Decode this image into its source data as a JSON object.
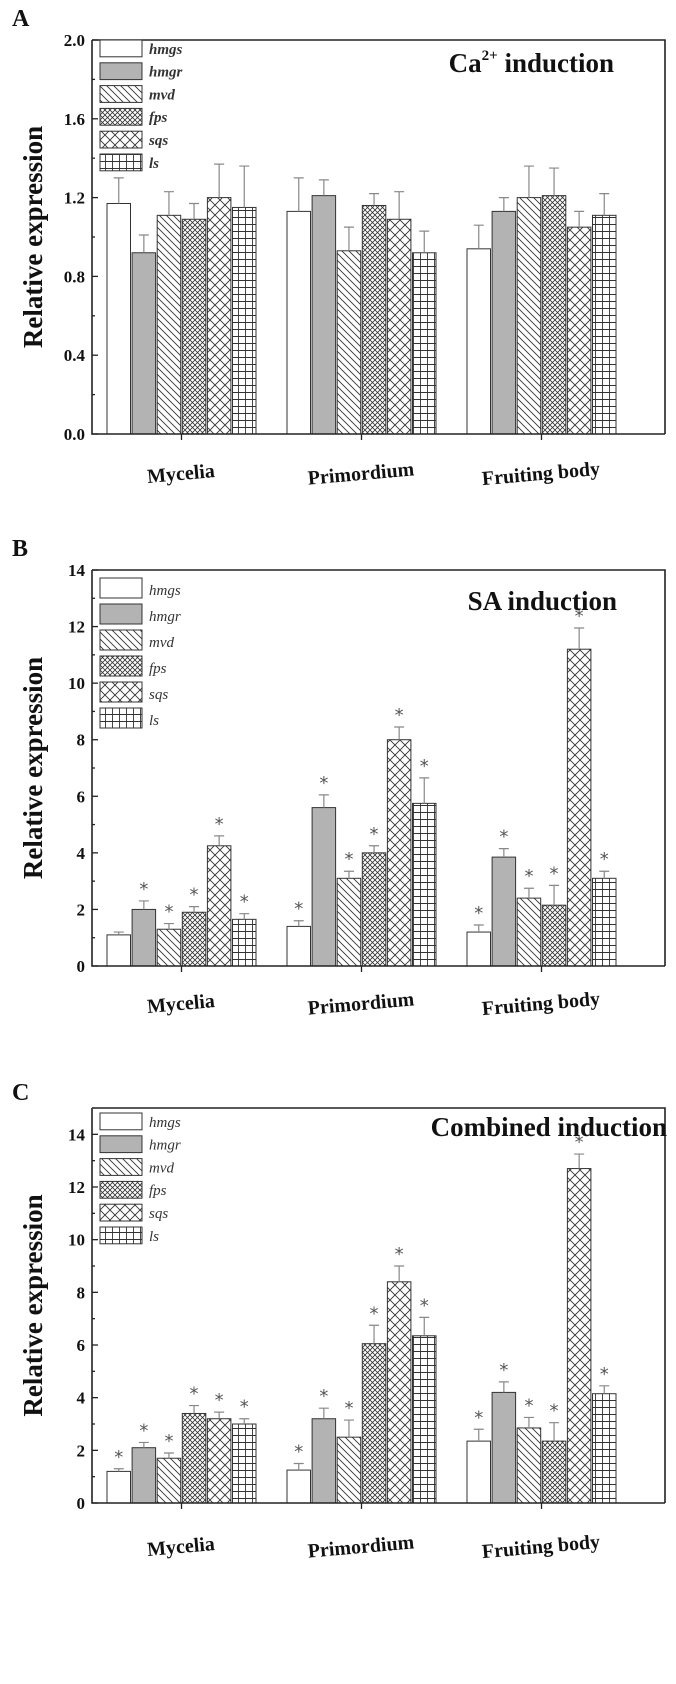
{
  "series_styles": [
    {
      "id": "hmgs",
      "fill": "#ffffff",
      "pattern": "none"
    },
    {
      "id": "hmgr",
      "fill": "#b3b3b3",
      "pattern": "solid"
    },
    {
      "id": "mvd",
      "fill": "#ffffff",
      "pattern": "diag-back"
    },
    {
      "id": "fps",
      "fill": "#ffffff",
      "pattern": "dense-cross"
    },
    {
      "id": "sqs",
      "fill": "#ffffff",
      "pattern": "diag-cross"
    },
    {
      "id": "ls",
      "fill": "#ffffff",
      "pattern": "grid"
    }
  ],
  "chart_data": [
    {
      "type": "bar",
      "panel": "A",
      "title": "Ca",
      "title_sup": "2+",
      "title_rest": " induction",
      "ylabel": "Relative expression",
      "ylim": [
        0,
        2.0
      ],
      "yticks": [
        0.0,
        0.4,
        0.8,
        1.2,
        1.6,
        2.0
      ],
      "ytick_labels": [
        "0.0",
        "0.4",
        "0.8",
        "1.2",
        "1.6",
        "2.0"
      ],
      "categories": [
        "Mycelia",
        "Primordium",
        "Fruiting body"
      ],
      "legend_bold": true,
      "series": [
        {
          "name": "hmgs",
          "values": [
            1.17,
            1.13,
            0.94
          ],
          "errors": [
            0.13,
            0.17,
            0.12
          ],
          "sig": [
            false,
            false,
            false
          ]
        },
        {
          "name": "hmgr",
          "values": [
            0.92,
            1.21,
            1.13
          ],
          "errors": [
            0.09,
            0.08,
            0.07
          ],
          "sig": [
            false,
            false,
            false
          ]
        },
        {
          "name": "mvd",
          "values": [
            1.11,
            0.93,
            1.2
          ],
          "errors": [
            0.12,
            0.12,
            0.16
          ],
          "sig": [
            false,
            false,
            false
          ]
        },
        {
          "name": "fps",
          "values": [
            1.09,
            1.16,
            1.21
          ],
          "errors": [
            0.08,
            0.06,
            0.14
          ],
          "sig": [
            false,
            false,
            false
          ]
        },
        {
          "name": "sqs",
          "values": [
            1.2,
            1.09,
            1.05
          ],
          "errors": [
            0.17,
            0.14,
            0.08
          ],
          "sig": [
            false,
            false,
            false
          ]
        },
        {
          "name": "ls",
          "values": [
            1.15,
            0.92,
            1.11
          ],
          "errors": [
            0.21,
            0.11,
            0.11
          ],
          "sig": [
            false,
            false,
            false
          ]
        }
      ]
    },
    {
      "type": "bar",
      "panel": "B",
      "title": "SA induction",
      "title_sup": "",
      "title_rest": "",
      "ylabel": "Relative expression",
      "ylim": [
        0,
        14
      ],
      "yticks": [
        0,
        2,
        4,
        6,
        8,
        10,
        12,
        14
      ],
      "ytick_labels": [
        "0",
        "2",
        "4",
        "6",
        "8",
        "10",
        "12",
        "14"
      ],
      "categories": [
        "Mycelia",
        "Primordium",
        "Fruiting body"
      ],
      "legend_bold": false,
      "series": [
        {
          "name": "hmgs",
          "values": [
            1.1,
            1.4,
            1.2
          ],
          "errors": [
            0.1,
            0.2,
            0.25
          ],
          "sig": [
            false,
            true,
            true
          ]
        },
        {
          "name": "hmgr",
          "values": [
            2.0,
            5.6,
            3.85
          ],
          "errors": [
            0.3,
            0.45,
            0.3
          ],
          "sig": [
            true,
            true,
            true
          ]
        },
        {
          "name": "mvd",
          "values": [
            1.3,
            3.1,
            2.4
          ],
          "errors": [
            0.2,
            0.25,
            0.35
          ],
          "sig": [
            true,
            true,
            true
          ]
        },
        {
          "name": "fps",
          "values": [
            1.9,
            4.0,
            2.15
          ],
          "errors": [
            0.2,
            0.25,
            0.7
          ],
          "sig": [
            true,
            true,
            true
          ]
        },
        {
          "name": "sqs",
          "values": [
            4.25,
            8.0,
            11.2
          ],
          "errors": [
            0.35,
            0.45,
            0.75
          ],
          "sig": [
            true,
            true,
            true
          ]
        },
        {
          "name": "ls",
          "values": [
            1.65,
            5.75,
            3.1
          ],
          "errors": [
            0.2,
            0.9,
            0.25
          ],
          "sig": [
            true,
            true,
            true
          ]
        }
      ]
    },
    {
      "type": "bar",
      "panel": "C",
      "title": "Combined induction",
      "title_sup": "",
      "title_rest": "",
      "ylabel": "Relative expression",
      "ylim": [
        0,
        15
      ],
      "yticks": [
        0,
        2,
        4,
        6,
        8,
        10,
        12,
        14
      ],
      "ytick_labels": [
        "0",
        "2",
        "4",
        "6",
        "8",
        "10",
        "12",
        "14"
      ],
      "categories": [
        "Mycelia",
        "Primordium",
        "Fruiting body"
      ],
      "legend_bold": false,
      "series": [
        {
          "name": "hmgs",
          "values": [
            1.2,
            1.25,
            2.35
          ],
          "errors": [
            0.1,
            0.25,
            0.45
          ],
          "sig": [
            true,
            true,
            true
          ]
        },
        {
          "name": "hmgr",
          "values": [
            2.1,
            3.2,
            4.2
          ],
          "errors": [
            0.2,
            0.4,
            0.4
          ],
          "sig": [
            true,
            true,
            true
          ]
        },
        {
          "name": "mvd",
          "values": [
            1.7,
            2.5,
            2.85
          ],
          "errors": [
            0.2,
            0.65,
            0.4
          ],
          "sig": [
            true,
            true,
            true
          ]
        },
        {
          "name": "fps",
          "values": [
            3.4,
            6.05,
            2.35
          ],
          "errors": [
            0.3,
            0.7,
            0.7
          ],
          "sig": [
            true,
            true,
            true
          ]
        },
        {
          "name": "sqs",
          "values": [
            3.2,
            8.4,
            12.7
          ],
          "errors": [
            0.25,
            0.6,
            0.55
          ],
          "sig": [
            true,
            true,
            true
          ]
        },
        {
          "name": "ls",
          "values": [
            3.0,
            6.35,
            4.15
          ],
          "errors": [
            0.2,
            0.7,
            0.3
          ],
          "sig": [
            true,
            true,
            true
          ]
        }
      ]
    }
  ]
}
